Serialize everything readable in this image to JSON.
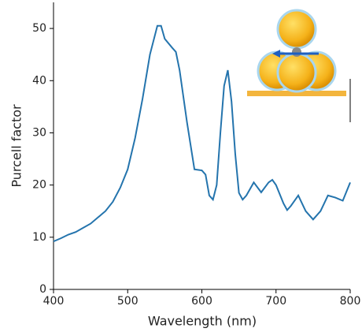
{
  "chart_data": {
    "type": "line",
    "x_label": "Wavelength (nm)",
    "y_label": "Purcell factor",
    "x": [
      400,
      410,
      420,
      430,
      440,
      450,
      460,
      470,
      480,
      490,
      500,
      510,
      520,
      530,
      540,
      545,
      550,
      560,
      565,
      570,
      580,
      590,
      600,
      605,
      610,
      615,
      620,
      625,
      630,
      635,
      640,
      645,
      650,
      655,
      660,
      670,
      680,
      690,
      695,
      700,
      710,
      715,
      720,
      730,
      740,
      750,
      760,
      770,
      780,
      790,
      800
    ],
    "series": [
      {
        "name": "Purcell factor",
        "color": "#2474ad",
        "values": [
          9.2,
          9.8,
          10.5,
          11.0,
          11.8,
          12.6,
          13.8,
          15.0,
          16.8,
          19.5,
          23.0,
          29.0,
          36.5,
          45.0,
          50.5,
          50.5,
          48.0,
          46.3,
          45.5,
          42.0,
          32.0,
          23.0,
          22.8,
          22.0,
          18.0,
          17.2,
          20.0,
          30.0,
          39.0,
          42.0,
          36.0,
          26.0,
          18.5,
          17.2,
          18.0,
          20.5,
          18.6,
          20.5,
          21.0,
          20.0,
          16.5,
          15.2,
          16.0,
          18.0,
          15.0,
          13.4,
          15.0,
          18.0,
          17.6,
          17.0,
          20.5
        ]
      }
    ],
    "xlim": [
      400,
      800
    ],
    "ylim": [
      0,
      55
    ],
    "xticks": [
      400,
      500,
      600,
      700,
      800
    ],
    "yticks": [
      0,
      10,
      20,
      30,
      40,
      50
    ],
    "grid": false
  }
}
